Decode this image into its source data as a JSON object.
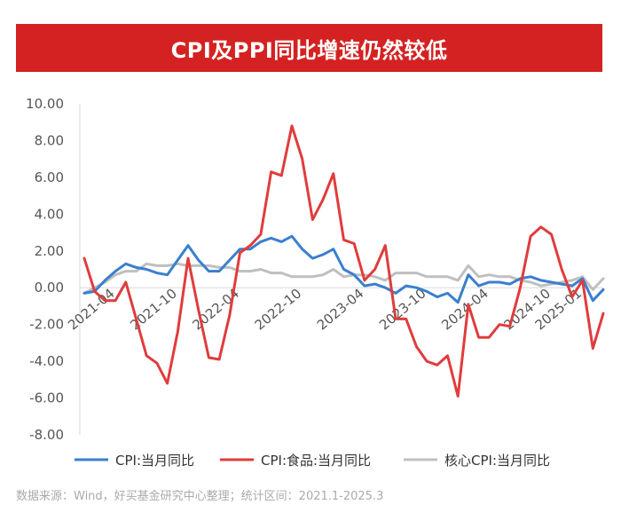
{
  "header": {
    "title": "CPI及PPI同比增速仍然较低"
  },
  "source": "数据来源：Wind，好买基金研究中心整理；统计区间：2021.1-2025.3",
  "colors": {
    "cpi": "#3a7fce",
    "food": "#e03c3c",
    "core": "#bfbfbf",
    "axis": "#d9d9d9",
    "banner": "#d42222"
  },
  "chart_data": {
    "type": "line",
    "title": "CPI及PPI同比增速仍然较低",
    "xlabel": "",
    "ylabel": "",
    "ylim": [
      -8,
      10
    ],
    "ytick_labels": [
      "10.00",
      "8.00",
      "6.00",
      "4.00",
      "2.00",
      "0.00",
      "-2.00",
      "-4.00",
      "-6.00",
      "-8.00"
    ],
    "xtick_labels": [
      "2021-04",
      "2021-10",
      "2022-04",
      "2022-10",
      "2023-04",
      "2023-10",
      "2024-04",
      "2024-10",
      "2025-01"
    ],
    "x": [
      "2021-01",
      "2021-02",
      "2021-03",
      "2021-04",
      "2021-05",
      "2021-06",
      "2021-07",
      "2021-08",
      "2021-09",
      "2021-10",
      "2021-11",
      "2021-12",
      "2022-01",
      "2022-02",
      "2022-03",
      "2022-04",
      "2022-05",
      "2022-06",
      "2022-07",
      "2022-08",
      "2022-09",
      "2022-10",
      "2022-11",
      "2022-12",
      "2023-01",
      "2023-02",
      "2023-03",
      "2023-04",
      "2023-05",
      "2023-06",
      "2023-07",
      "2023-08",
      "2023-09",
      "2023-10",
      "2023-11",
      "2023-12",
      "2024-01",
      "2024-02",
      "2024-03",
      "2024-04",
      "2024-05",
      "2024-06",
      "2024-07",
      "2024-08",
      "2024-09",
      "2024-10",
      "2024-11",
      "2024-12",
      "2025-01",
      "2025-02",
      "2025-03"
    ],
    "series": [
      {
        "name": "CPI:当月同比",
        "values": [
          -0.3,
          -0.2,
          0.4,
          0.9,
          1.3,
          1.1,
          1.0,
          0.8,
          0.7,
          1.5,
          2.3,
          1.5,
          0.9,
          0.9,
          1.5,
          2.1,
          2.1,
          2.5,
          2.7,
          2.5,
          2.8,
          2.1,
          1.6,
          1.8,
          2.1,
          1.0,
          0.7,
          0.1,
          0.2,
          0.0,
          -0.3,
          0.1,
          0.0,
          -0.2,
          -0.5,
          -0.3,
          -0.8,
          0.7,
          0.1,
          0.3,
          0.3,
          0.2,
          0.5,
          0.6,
          0.4,
          0.3,
          0.2,
          0.1,
          0.5,
          -0.7,
          -0.1
        ]
      },
      {
        "name": "CPI:食品:当月同比",
        "values": [
          1.6,
          -0.2,
          -0.7,
          -0.7,
          0.3,
          -1.7,
          -3.7,
          -4.1,
          -5.2,
          -2.4,
          1.6,
          -1.2,
          -3.8,
          -3.9,
          -1.5,
          1.9,
          2.3,
          2.9,
          6.3,
          6.1,
          8.8,
          7.0,
          3.7,
          4.8,
          6.2,
          2.6,
          2.4,
          0.4,
          1.0,
          2.3,
          -1.7,
          -1.7,
          -3.2,
          -4.0,
          -4.2,
          -3.7,
          -5.9,
          -0.9,
          -2.7,
          -2.7,
          -2.0,
          -2.1,
          0.0,
          2.8,
          3.3,
          2.9,
          1.0,
          -0.5,
          0.4,
          -3.3,
          -1.4
        ]
      },
      {
        "name": "核心CPI:当月同比",
        "values": [
          -0.3,
          0.0,
          0.3,
          0.7,
          0.9,
          0.9,
          1.3,
          1.2,
          1.2,
          1.3,
          1.2,
          1.2,
          1.2,
          1.1,
          1.1,
          0.9,
          0.9,
          1.0,
          0.8,
          0.8,
          0.6,
          0.6,
          0.6,
          0.7,
          1.0,
          0.6,
          0.7,
          0.7,
          0.6,
          0.4,
          0.8,
          0.8,
          0.8,
          0.6,
          0.6,
          0.6,
          0.4,
          1.2,
          0.6,
          0.7,
          0.6,
          0.6,
          0.4,
          0.3,
          0.1,
          0.2,
          0.3,
          0.4,
          0.6,
          -0.1,
          0.5
        ]
      }
    ],
    "legend_position": "bottom"
  }
}
